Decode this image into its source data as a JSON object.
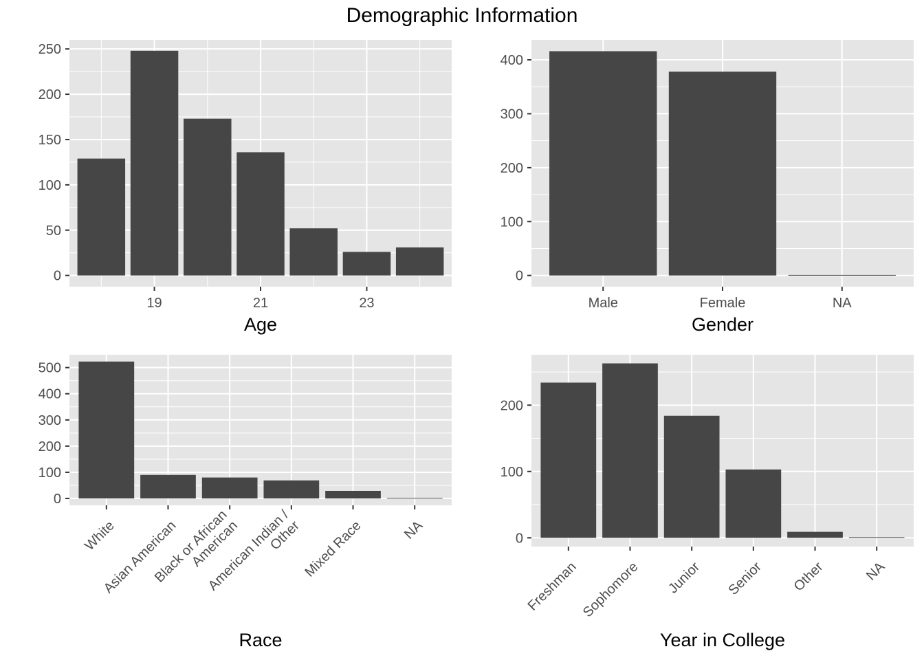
{
  "title": "Demographic Information",
  "colors": {
    "panel": "#e5e5e5",
    "bar": "#464646",
    "grid": "#ffffff"
  },
  "chart_data": [
    {
      "type": "bar",
      "id": "age",
      "xlabel": "Age",
      "ylabel": "",
      "x": [
        18,
        19,
        20,
        21,
        22,
        23,
        24
      ],
      "values": [
        129,
        248,
        173,
        136,
        52,
        26,
        31
      ],
      "xticks": [
        19,
        21,
        23
      ],
      "xlim": [
        17.4,
        24.6
      ],
      "ylim": [
        -12.4,
        260
      ],
      "yticks": [
        0,
        50,
        100,
        150,
        200,
        250
      ],
      "grid": true
    },
    {
      "type": "bar",
      "id": "gender",
      "xlabel": "Gender",
      "ylabel": "",
      "categories": [
        "Male",
        "Female",
        "NA"
      ],
      "values": [
        416,
        378,
        1
      ],
      "ylim": [
        -20.8,
        437
      ],
      "yticks": [
        0,
        100,
        200,
        300,
        400
      ],
      "grid": true
    },
    {
      "type": "bar",
      "id": "race",
      "xlabel": "Race",
      "ylabel": "",
      "categories": [
        "White",
        "Asian American",
        "Black or African\nAmerican",
        "American Indian /\nOther",
        "Mixed Race",
        "NA"
      ],
      "values": [
        523,
        90,
        80,
        69,
        29,
        2
      ],
      "ylim": [
        -26.2,
        549
      ],
      "yticks": [
        0,
        100,
        200,
        300,
        400,
        500
      ],
      "grid": true
    },
    {
      "type": "bar",
      "id": "year",
      "xlabel": "Year in College",
      "ylabel": "",
      "categories": [
        "Freshman",
        "Sophomore",
        "Junior",
        "Senior",
        "Other",
        "NA"
      ],
      "values": [
        234,
        263,
        184,
        103,
        9,
        1
      ],
      "ylim": [
        -13.2,
        276
      ],
      "yticks": [
        0,
        100,
        200
      ],
      "grid": true
    }
  ]
}
